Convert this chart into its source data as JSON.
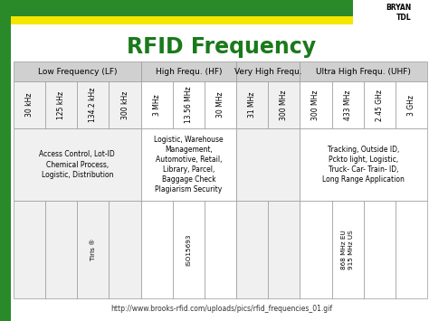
{
  "title": "RFID Frequency",
  "title_color": "#1a7a1a",
  "green_color": "#2a8a2a",
  "yellow_color": "#f5e600",
  "bg_color": "#ffffff",
  "outer_bg": "#e8e8e8",
  "freq_labels": [
    "30 kHz",
    "125 kHz",
    "134.2 kHz",
    "300 kHz",
    "3 MHz",
    "13.56 MHz",
    "30 MHz",
    "31 MHz",
    "300 MHz",
    "300 MHz",
    "433 MHz",
    "2.45 GHz",
    "3 GHz"
  ],
  "group_spans": [
    [
      0,
      4,
      "Low Frequency (LF)"
    ],
    [
      4,
      7,
      "High Frequ. (HF)"
    ],
    [
      7,
      9,
      "Very High Frequ."
    ],
    [
      9,
      13,
      "Ultra High Frequ. (UHF)"
    ]
  ],
  "app_data": [
    [
      0,
      4,
      "Access Control, Lot-ID\nChemical Process,\nLogistic, Distribution"
    ],
    [
      4,
      7,
      "Logistic, Warehouse\nManagement,\nAutomotive, Retail,\nLibrary, Parcel,\nBaggage Check\nPlagiarism Security"
    ],
    [
      7,
      9,
      ""
    ],
    [
      9,
      13,
      "Tracking, Outside ID,\nPckto light, Logistic,\nTruck- Car- Train- ID,\nLong Range Application"
    ]
  ],
  "std_cells": [
    [
      0,
      1,
      ""
    ],
    [
      1,
      2,
      ""
    ],
    [
      2,
      3,
      "Tiris ®"
    ],
    [
      3,
      4,
      ""
    ],
    [
      4,
      5,
      ""
    ],
    [
      5,
      6,
      "ISO15693"
    ],
    [
      6,
      7,
      ""
    ],
    [
      7,
      8,
      ""
    ],
    [
      8,
      9,
      ""
    ],
    [
      9,
      10,
      ""
    ],
    [
      10,
      11,
      "868 MHz EU\n915 MHz US"
    ],
    [
      11,
      12,
      ""
    ],
    [
      12,
      13,
      ""
    ]
  ],
  "url": "http://www.brooks-rfid.com/uploads/pics/rfid_frequencies_01.gif",
  "n_cols": 13,
  "cell_bg": "#f0f0f0",
  "cell_bg2": "#ffffff",
  "header_bg": "#d0d0d0",
  "grid_color": "#999999"
}
